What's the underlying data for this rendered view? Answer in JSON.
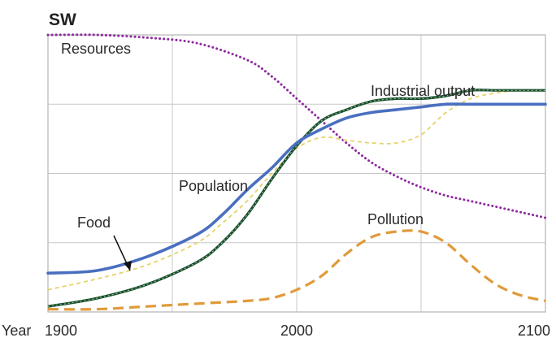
{
  "chart_data": {
    "type": "line",
    "title": "SW",
    "xlabel": "Year",
    "xlim": [
      1900,
      2100
    ],
    "ylim": [
      0,
      100
    ],
    "x_ticks": [
      "1900",
      "2000",
      "2100"
    ],
    "grid": true,
    "legend": "none",
    "series": [
      {
        "name": "Resources",
        "color": "#8e2a9e",
        "style": "dotted",
        "x": [
          1900,
          1920,
          1940,
          1960,
          1980,
          1990,
          2000,
          2010,
          2020,
          2030,
          2040,
          2050,
          2060,
          2070,
          2080,
          2090,
          2100
        ],
        "y": [
          100,
          100,
          99,
          97,
          91,
          85,
          77,
          69,
          61,
          54,
          49,
          45,
          42,
          40,
          38,
          36,
          34
        ]
      },
      {
        "name": "Industrial output",
        "color": "#1a4d2e",
        "style": "solid",
        "x": [
          1900,
          1920,
          1940,
          1960,
          1970,
          1980,
          1990,
          2000,
          2010,
          2020,
          2030,
          2040,
          2050,
          2060,
          2070,
          2080,
          2090,
          2100
        ],
        "y": [
          2,
          5,
          10,
          18,
          25,
          35,
          48,
          60,
          69,
          73,
          76,
          77,
          77,
          78,
          80,
          80,
          80,
          80
        ]
      },
      {
        "name": "Population",
        "color": "#4a6fc0",
        "style": "solid",
        "x": [
          1900,
          1920,
          1940,
          1960,
          1970,
          1980,
          1990,
          2000,
          2010,
          2020,
          2030,
          2040,
          2050,
          2060,
          2070,
          2080,
          2090,
          2100
        ],
        "y": [
          14,
          15,
          20,
          28,
          35,
          44,
          52,
          61,
          66,
          70,
          72,
          73,
          74,
          75,
          75,
          75,
          75,
          75
        ]
      },
      {
        "name": "Food",
        "color": "#e6d26a",
        "style": "dashed",
        "x": [
          1900,
          1920,
          1940,
          1960,
          1970,
          1980,
          1990,
          2000,
          2010,
          2020,
          2030,
          2040,
          2050,
          2060,
          2070,
          2080,
          2090,
          2100
        ],
        "y": [
          8,
          12,
          17,
          25,
          32,
          40,
          50,
          59,
          63,
          62,
          61,
          61,
          64,
          72,
          77,
          79,
          80,
          80
        ]
      },
      {
        "name": "Pollution",
        "color": "#e09a3a",
        "style": "dashed",
        "x": [
          1900,
          1920,
          1940,
          1960,
          1980,
          1990,
          2000,
          2010,
          2020,
          2030,
          2040,
          2050,
          2060,
          2070,
          2080,
          2090,
          2100
        ],
        "y": [
          1,
          1,
          2,
          3,
          4,
          5,
          8,
          13,
          21,
          27,
          29,
          29,
          25,
          17,
          10,
          6,
          4
        ]
      }
    ]
  }
}
